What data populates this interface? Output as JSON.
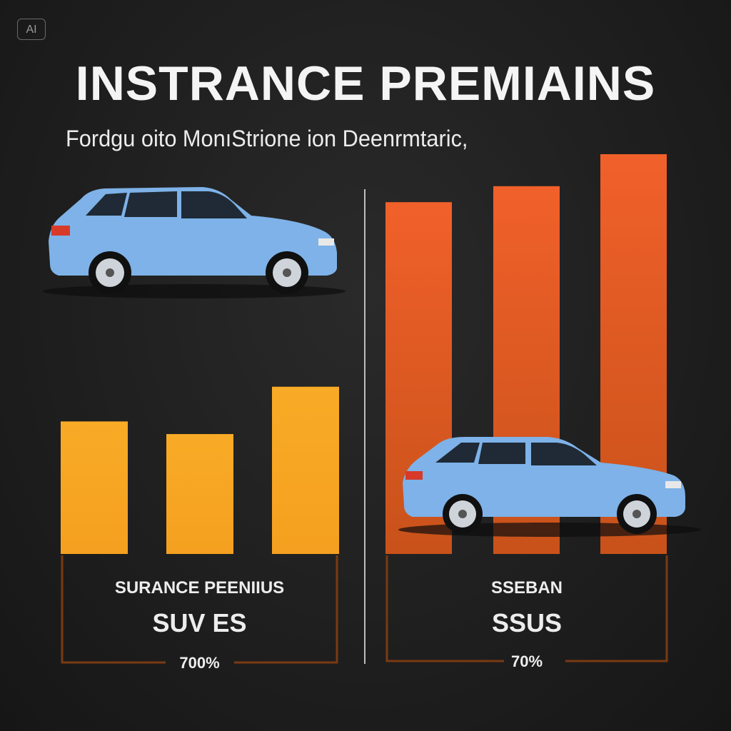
{
  "badge": "AI",
  "title": "INSTRANCE PREMIAINS",
  "subtitle": "Fordgu oito MonıStrione ion Deenrmtaric,",
  "colors": {
    "background": "#1f1f1f",
    "yellow_bar": "#f7a823",
    "orange_bar_top": "#f1602a",
    "orange_bar_bottom": "#c65a1a",
    "bracket": "#7a3a12",
    "car_body": "#7eb2e8",
    "divider": "#bdbdbd"
  },
  "chart_data": [
    {
      "type": "bar",
      "group": "left",
      "values": [
        42,
        38,
        53
      ],
      "color": "#f7a823",
      "ylim": [
        0,
        100
      ],
      "labels": {
        "line1": "SURANCE PEENIIUS",
        "line2": "SUV ES",
        "line3": "700%"
      }
    },
    {
      "type": "bar",
      "group": "right",
      "values": [
        88,
        92,
        100
      ],
      "color": "#f1602a",
      "ylim": [
        0,
        100
      ],
      "labels": {
        "line1": "SSEBAN",
        "line2": "SSUS",
        "line3": "70%"
      }
    }
  ],
  "icons": [
    "suv-car-icon",
    "sedan-car-icon"
  ]
}
